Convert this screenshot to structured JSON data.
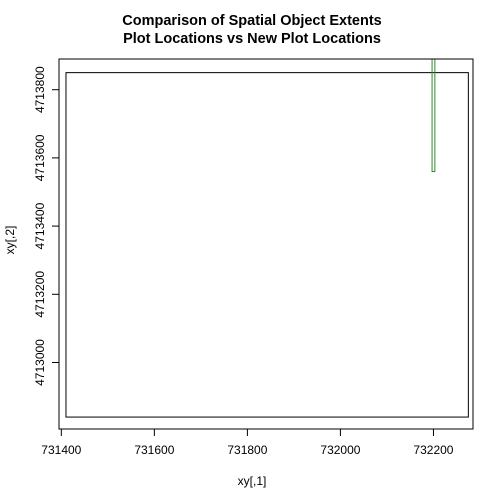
{
  "chart_data": {
    "type": "line",
    "title": "Comparison of Spatial Object Extents",
    "subtitle": "Plot Locations vs New Plot Locations",
    "xlabel": "xy[,1]",
    "ylabel": "xy[,2]",
    "xlim": [
      731395,
      732285
    ],
    "ylim": [
      4712805,
      4713890
    ],
    "x_ticks": [
      731400,
      731600,
      731800,
      732000,
      732200
    ],
    "y_ticks": [
      4713000,
      4713200,
      4713400,
      4713600,
      4713800
    ],
    "grid": false,
    "series": [
      {
        "color": "#000000",
        "xmin": 731410,
        "xmax": 732275,
        "ymin": 4712840,
        "ymax": 4713850
      },
      {
        "color": "#2e8b2e",
        "xmin": 732197,
        "xmax": 732203,
        "ymin": 4713560,
        "ymax": 4713900
      }
    ]
  }
}
